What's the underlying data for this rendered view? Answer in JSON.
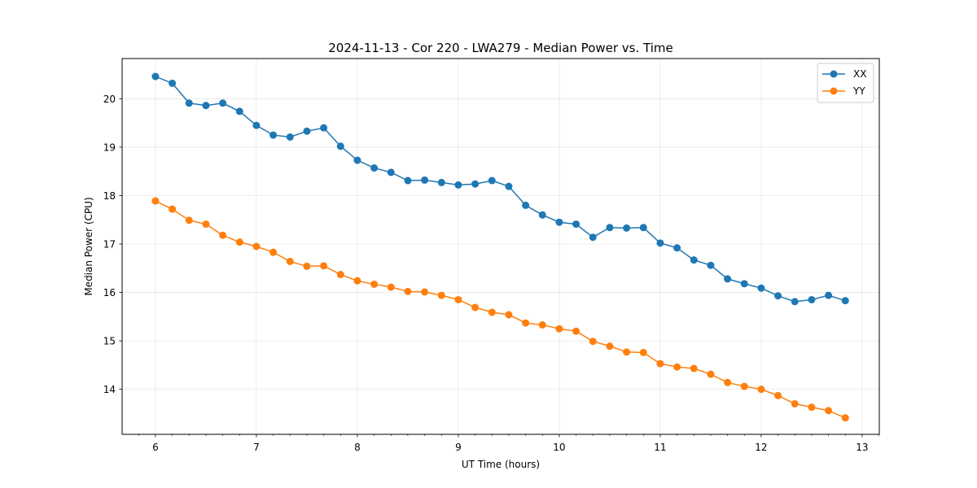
{
  "chart_data": {
    "type": "line",
    "title": "2024-11-13 - Cor 220 - LWA279 - Median Power vs. Time",
    "xlabel": "UT Time (hours)",
    "ylabel": "Median Power (CPU)",
    "xlim": [
      5.67,
      13.17
    ],
    "ylim": [
      13.07,
      20.83
    ],
    "xticks": [
      6,
      7,
      8,
      9,
      10,
      11,
      12,
      13
    ],
    "yticks": [
      14,
      15,
      16,
      17,
      18,
      19,
      20
    ],
    "grid": true,
    "legend_position": "top-right",
    "x": [
      6.0,
      6.1667,
      6.3333,
      6.5,
      6.6667,
      6.8333,
      7.0,
      7.1667,
      7.3333,
      7.5,
      7.6667,
      7.8333,
      8.0,
      8.1667,
      8.3333,
      8.5,
      8.6667,
      8.8333,
      9.0,
      9.1667,
      9.3333,
      9.5,
      9.6667,
      9.8333,
      10.0,
      10.1667,
      10.3333,
      10.5,
      10.6667,
      10.8333,
      11.0,
      11.1667,
      11.3333,
      11.5,
      11.6667,
      11.8333,
      12.0,
      12.1667,
      12.3333,
      12.5,
      12.6667,
      12.8333
    ],
    "series": [
      {
        "name": "XX",
        "color": "#1f77b4",
        "values": [
          20.46,
          20.32,
          19.91,
          19.86,
          19.91,
          19.74,
          19.45,
          19.25,
          19.21,
          19.33,
          19.4,
          19.02,
          18.73,
          18.57,
          18.48,
          18.31,
          18.32,
          18.27,
          18.22,
          18.24,
          18.31,
          18.19,
          17.8,
          17.6,
          17.45,
          17.41,
          17.14,
          17.34,
          17.33,
          17.34,
          17.02,
          16.92,
          16.67,
          16.56,
          16.28,
          16.18,
          16.09,
          15.93,
          15.81,
          15.85,
          15.94,
          15.83
        ]
      },
      {
        "name": "YY",
        "color": "#ff7f0e",
        "values": [
          17.89,
          17.72,
          17.49,
          17.41,
          17.18,
          17.04,
          16.95,
          16.83,
          16.64,
          16.54,
          16.55,
          16.37,
          16.24,
          16.17,
          16.11,
          16.02,
          16.01,
          15.94,
          15.85,
          15.69,
          15.59,
          15.54,
          15.37,
          15.33,
          15.25,
          15.2,
          14.99,
          14.89,
          14.77,
          14.76,
          14.53,
          14.46,
          14.43,
          14.31,
          14.14,
          14.06,
          14.0,
          13.87,
          13.7,
          13.63,
          13.56,
          13.41
        ]
      }
    ]
  }
}
